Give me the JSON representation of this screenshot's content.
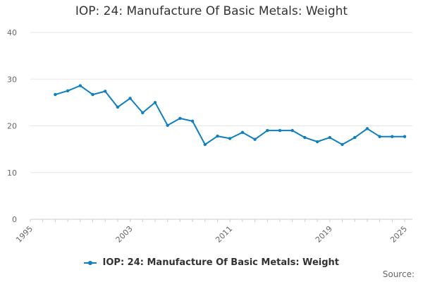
{
  "chart_data": {
    "type": "line",
    "title": "IOP: 24: Manufacture Of Basic Metals: Weight",
    "xlabel": "",
    "ylabel": "",
    "xlim": [
      1995,
      2025
    ],
    "ylim": [
      0,
      40
    ],
    "y_ticks": [
      "0",
      "10",
      "20",
      "30",
      "40"
    ],
    "x_ticks": [
      "1995",
      "2003",
      "2011",
      "2019",
      "2025"
    ],
    "grid": true,
    "legend_position": "bottom",
    "series": [
      {
        "name": "IOP: 24: Manufacture Of Basic Metals: Weight",
        "color": "#0e7fc0",
        "x": [
          1997,
          1998,
          1999,
          2000,
          2001,
          2002,
          2003,
          2004,
          2005,
          2006,
          2007,
          2008,
          2009,
          2010,
          2011,
          2012,
          2013,
          2014,
          2015,
          2016,
          2017,
          2018,
          2019,
          2020,
          2021,
          2022,
          2023,
          2024,
          2025
        ],
        "values": [
          26.7,
          27.5,
          28.6,
          26.7,
          27.4,
          24.0,
          25.9,
          22.8,
          25.0,
          20.1,
          21.6,
          21.0,
          16.0,
          17.8,
          17.3,
          18.6,
          17.1,
          19.0,
          19.0,
          19.0,
          17.5,
          16.6,
          17.5,
          16.0,
          17.5,
          19.4,
          17.7,
          17.7,
          17.7
        ]
      }
    ]
  },
  "source_label": "Source:"
}
